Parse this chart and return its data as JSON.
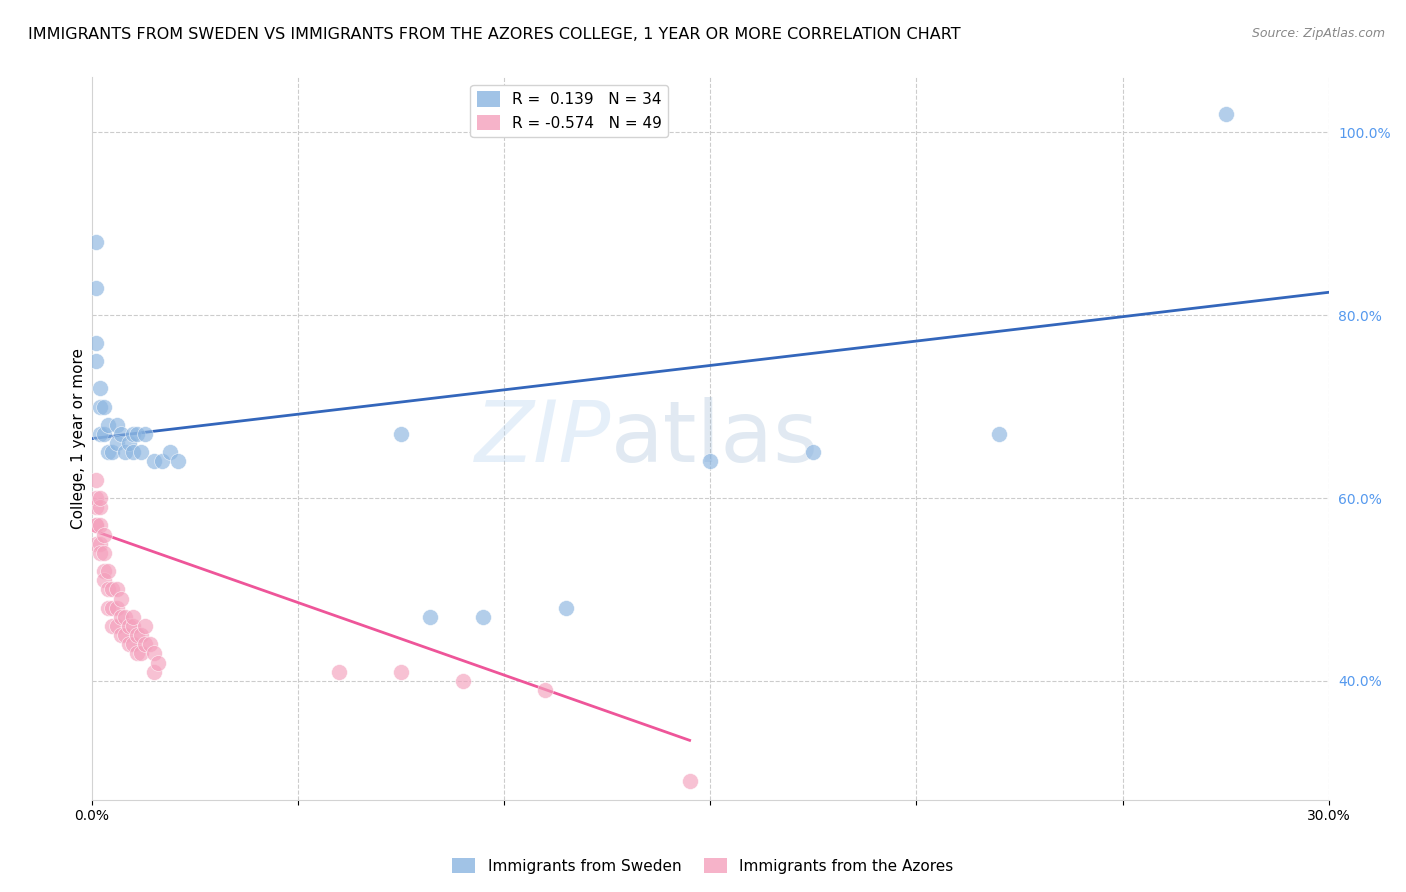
{
  "title": "IMMIGRANTS FROM SWEDEN VS IMMIGRANTS FROM THE AZORES COLLEGE, 1 YEAR OR MORE CORRELATION CHART",
  "source": "Source: ZipAtlas.com",
  "ylabel": "College, 1 year or more",
  "watermark": "ZIPatlas",
  "sweden_color": "#8AB4E0",
  "azores_color": "#F4A0BC",
  "sweden_line_color": "#3366BB",
  "azores_line_color": "#EE5599",
  "right_axis_color": "#5599EE",
  "legend_sweden_label": "Immigrants from Sweden",
  "legend_azores_label": "Immigrants from the Azores",
  "R_sweden": 0.139,
  "N_sweden": 34,
  "R_azores": -0.574,
  "N_azores": 49,
  "xlim": [
    0.0,
    0.3
  ],
  "ylim": [
    0.27,
    1.06
  ],
  "yticks_right": [
    0.4,
    0.6,
    0.8,
    1.0
  ],
  "ytick_labels_right": [
    "40.0%",
    "60.0%",
    "80.0%",
    "100.0%"
  ],
  "background_color": "#FFFFFF",
  "grid_color": "#CCCCCC",
  "title_fontsize": 11.5,
  "axis_label_fontsize": 11,
  "tick_fontsize": 10,
  "sweden_line_x": [
    0.0,
    0.3
  ],
  "sweden_line_y": [
    0.665,
    0.825
  ],
  "azores_line_x": [
    0.0,
    0.145
  ],
  "azores_line_y": [
    0.565,
    0.335
  ],
  "sweden_x": [
    0.001,
    0.001,
    0.001,
    0.001,
    0.002,
    0.002,
    0.002,
    0.003,
    0.003,
    0.004,
    0.004,
    0.005,
    0.006,
    0.006,
    0.007,
    0.008,
    0.009,
    0.01,
    0.01,
    0.011,
    0.012,
    0.013,
    0.015,
    0.017,
    0.019,
    0.021,
    0.075,
    0.082,
    0.095,
    0.115,
    0.15,
    0.175,
    0.22,
    0.275
  ],
  "sweden_y": [
    0.75,
    0.77,
    0.83,
    0.88,
    0.67,
    0.7,
    0.72,
    0.67,
    0.7,
    0.65,
    0.68,
    0.65,
    0.66,
    0.68,
    0.67,
    0.65,
    0.66,
    0.65,
    0.67,
    0.67,
    0.65,
    0.67,
    0.64,
    0.64,
    0.65,
    0.64,
    0.67,
    0.47,
    0.47,
    0.48,
    0.64,
    0.65,
    0.67,
    1.02
  ],
  "azores_x": [
    0.001,
    0.001,
    0.001,
    0.001,
    0.001,
    0.001,
    0.002,
    0.002,
    0.002,
    0.002,
    0.002,
    0.003,
    0.003,
    0.003,
    0.003,
    0.004,
    0.004,
    0.004,
    0.005,
    0.005,
    0.005,
    0.006,
    0.006,
    0.006,
    0.007,
    0.007,
    0.007,
    0.008,
    0.008,
    0.009,
    0.009,
    0.01,
    0.01,
    0.01,
    0.011,
    0.011,
    0.012,
    0.012,
    0.013,
    0.013,
    0.014,
    0.015,
    0.015,
    0.016,
    0.06,
    0.075,
    0.09,
    0.11,
    0.145
  ],
  "azores_y": [
    0.55,
    0.57,
    0.59,
    0.6,
    0.62,
    0.57,
    0.55,
    0.57,
    0.59,
    0.6,
    0.54,
    0.52,
    0.54,
    0.56,
    0.51,
    0.5,
    0.52,
    0.48,
    0.5,
    0.48,
    0.46,
    0.5,
    0.48,
    0.46,
    0.49,
    0.47,
    0.45,
    0.47,
    0.45,
    0.46,
    0.44,
    0.46,
    0.47,
    0.44,
    0.45,
    0.43,
    0.45,
    0.43,
    0.44,
    0.46,
    0.44,
    0.43,
    0.41,
    0.42,
    0.41,
    0.41,
    0.4,
    0.39,
    0.29
  ]
}
